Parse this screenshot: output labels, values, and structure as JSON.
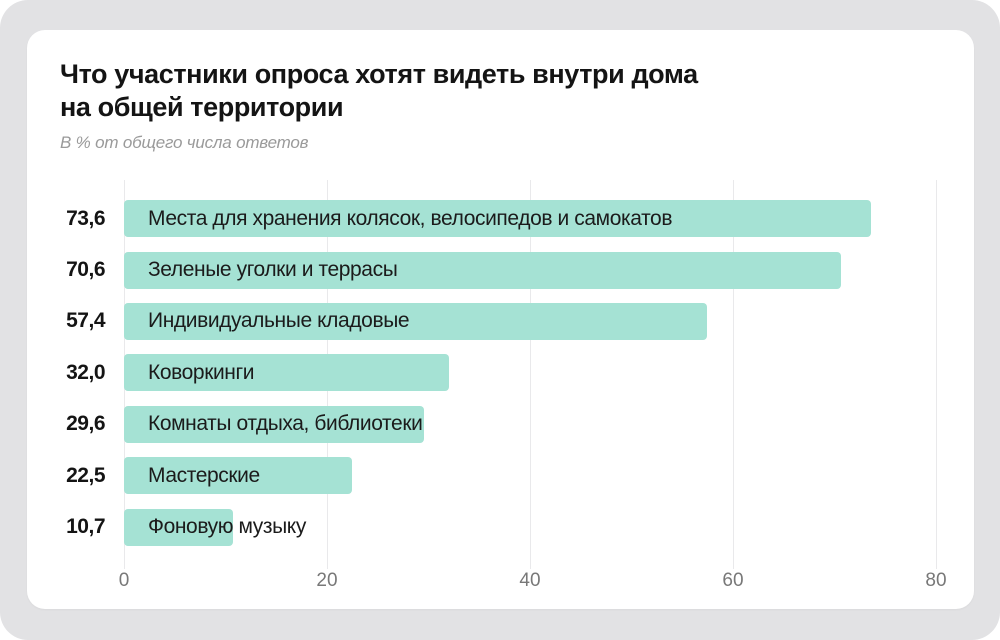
{
  "page": {
    "background_color": "#ffffff",
    "frame_color": "#e2e2e4",
    "card_color": "#ffffff"
  },
  "header": {
    "title_lines": [
      "Что участники опроса хотят видеть внутри дома",
      "на общей территории"
    ],
    "subtitle": "В % от общего числа ответов"
  },
  "chart_data": {
    "type": "bar",
    "orientation": "horizontal",
    "title": "Что участники опроса хотят видеть внутри дома на общей территории",
    "subtitle": "В % от общего числа ответов",
    "categories": [
      "Места для хранения колясок, велосипедов и самокатов",
      "Зеленые уголки и террасы",
      "Индивидуальные кладовые",
      "Коворкинги",
      "Комнаты отдыха, библиотеки",
      "Мастерские",
      "Фоновую музыку"
    ],
    "values": [
      73.6,
      70.6,
      57.4,
      32.0,
      29.6,
      22.5,
      10.7
    ],
    "value_labels": [
      "73,6",
      "70,6",
      "57,4",
      "32,0",
      "29,6",
      "22,5",
      "10,7"
    ],
    "xlabel": "",
    "ylabel": "",
    "xlim": [
      0,
      80
    ],
    "x_ticks": [
      0,
      20,
      40,
      60,
      80
    ],
    "grid": true,
    "legend": false,
    "bar_color": "#a5e2d4",
    "grid_color": "#e9e9eb",
    "value_label_color": "#141414",
    "category_label_color": "#1b1b1b",
    "tick_label_color": "#787878"
  }
}
